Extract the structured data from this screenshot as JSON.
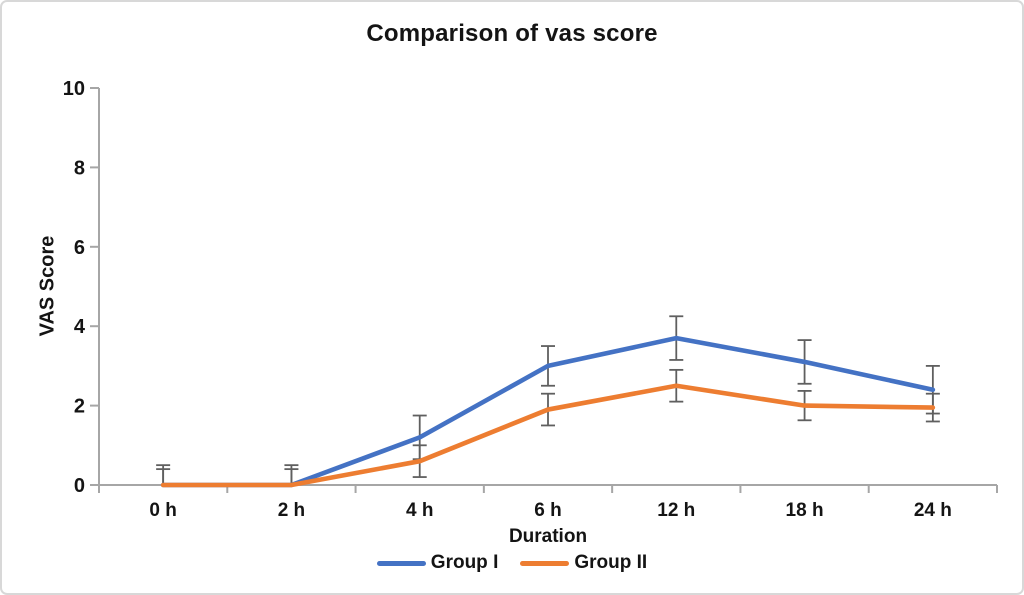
{
  "chart_data": {
    "type": "line",
    "title": "Comparison of vas score",
    "xlabel": "Duration",
    "ylabel": "VAS Score",
    "categories": [
      "0 h",
      "2 h",
      "4 h",
      "6 h",
      "12 h",
      "18 h",
      "24 h"
    ],
    "ylim": [
      0,
      10
    ],
    "ytick_step": 2,
    "yticks": [
      0,
      2,
      4,
      6,
      8,
      10
    ],
    "grid": false,
    "legend_position": "bottom",
    "axis_color": "#a6a6a6",
    "error_bar_color": "#5f5f5f",
    "series": [
      {
        "name": "Group I",
        "color": "#4472C4",
        "values": [
          0,
          0,
          1.2,
          3.0,
          3.7,
          3.1,
          2.4
        ],
        "errors": [
          0.5,
          0.5,
          0.55,
          0.5,
          0.55,
          0.55,
          0.6
        ]
      },
      {
        "name": "Group II",
        "color": "#ED7D31",
        "values": [
          0,
          0,
          0.6,
          1.9,
          2.5,
          2.0,
          1.95
        ],
        "errors": [
          0.4,
          0.4,
          0.4,
          0.4,
          0.4,
          0.37,
          0.35
        ]
      }
    ]
  }
}
